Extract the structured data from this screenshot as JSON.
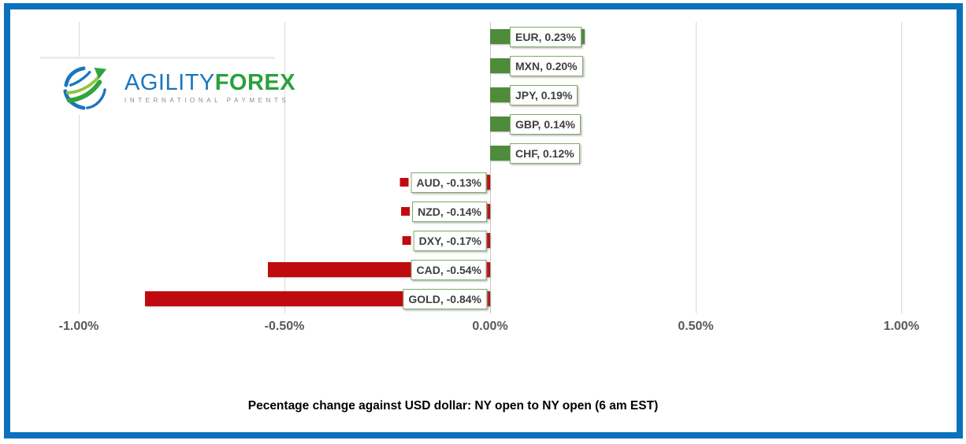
{
  "frame": {
    "border_color": "#0a72bc"
  },
  "logo": {
    "brand_primary": "AGILITY",
    "brand_secondary": "FOREX",
    "tagline": "INTERNATIONAL PAYMENTS",
    "colors": {
      "primary_blue": "#1c75bc",
      "secondary_green": "#2aa13c",
      "tagline_gray": "#8a8c8e"
    }
  },
  "chart_data": {
    "type": "bar",
    "orientation": "horizontal",
    "title": "",
    "caption": "Pecentage change against USD dollar: NY open to NY open  (6 am EST)",
    "categories": [
      "EUR",
      "MXN",
      "JPY",
      "GBP",
      "CHF",
      "AUD",
      "NZD",
      "DXY",
      "CAD",
      "GOLD"
    ],
    "values": [
      0.23,
      0.2,
      0.19,
      0.14,
      0.12,
      -0.13,
      -0.14,
      -0.17,
      -0.54,
      -0.84
    ],
    "labels": [
      "EUR, 0.23%",
      "MXN, 0.20%",
      "JPY, 0.19%",
      "GBP, 0.14%",
      "CHF, 0.12%",
      "AUD, -0.13%",
      "NZD, -0.14%",
      "DXY, -0.17%",
      "CAD, -0.54%",
      "GOLD, -0.84%"
    ],
    "x_ticks": [
      "-1.00%",
      "-0.50%",
      "0.00%",
      "0.50%",
      "1.00%"
    ],
    "x_tick_values": [
      -1.0,
      -0.5,
      0.0,
      0.5,
      1.0
    ],
    "xlim": [
      -1.0,
      1.0
    ],
    "grid": true,
    "legend_position": "none",
    "positive_color": "#4e8c3b",
    "negative_color": "#c00b0e",
    "label_border_color": "#81aa6b",
    "label_text_color": "#3f3f3f",
    "gridline_color": "#d9d9d9",
    "zero_line_color": "#c6c6c6",
    "axis_text_color": "#595959"
  }
}
